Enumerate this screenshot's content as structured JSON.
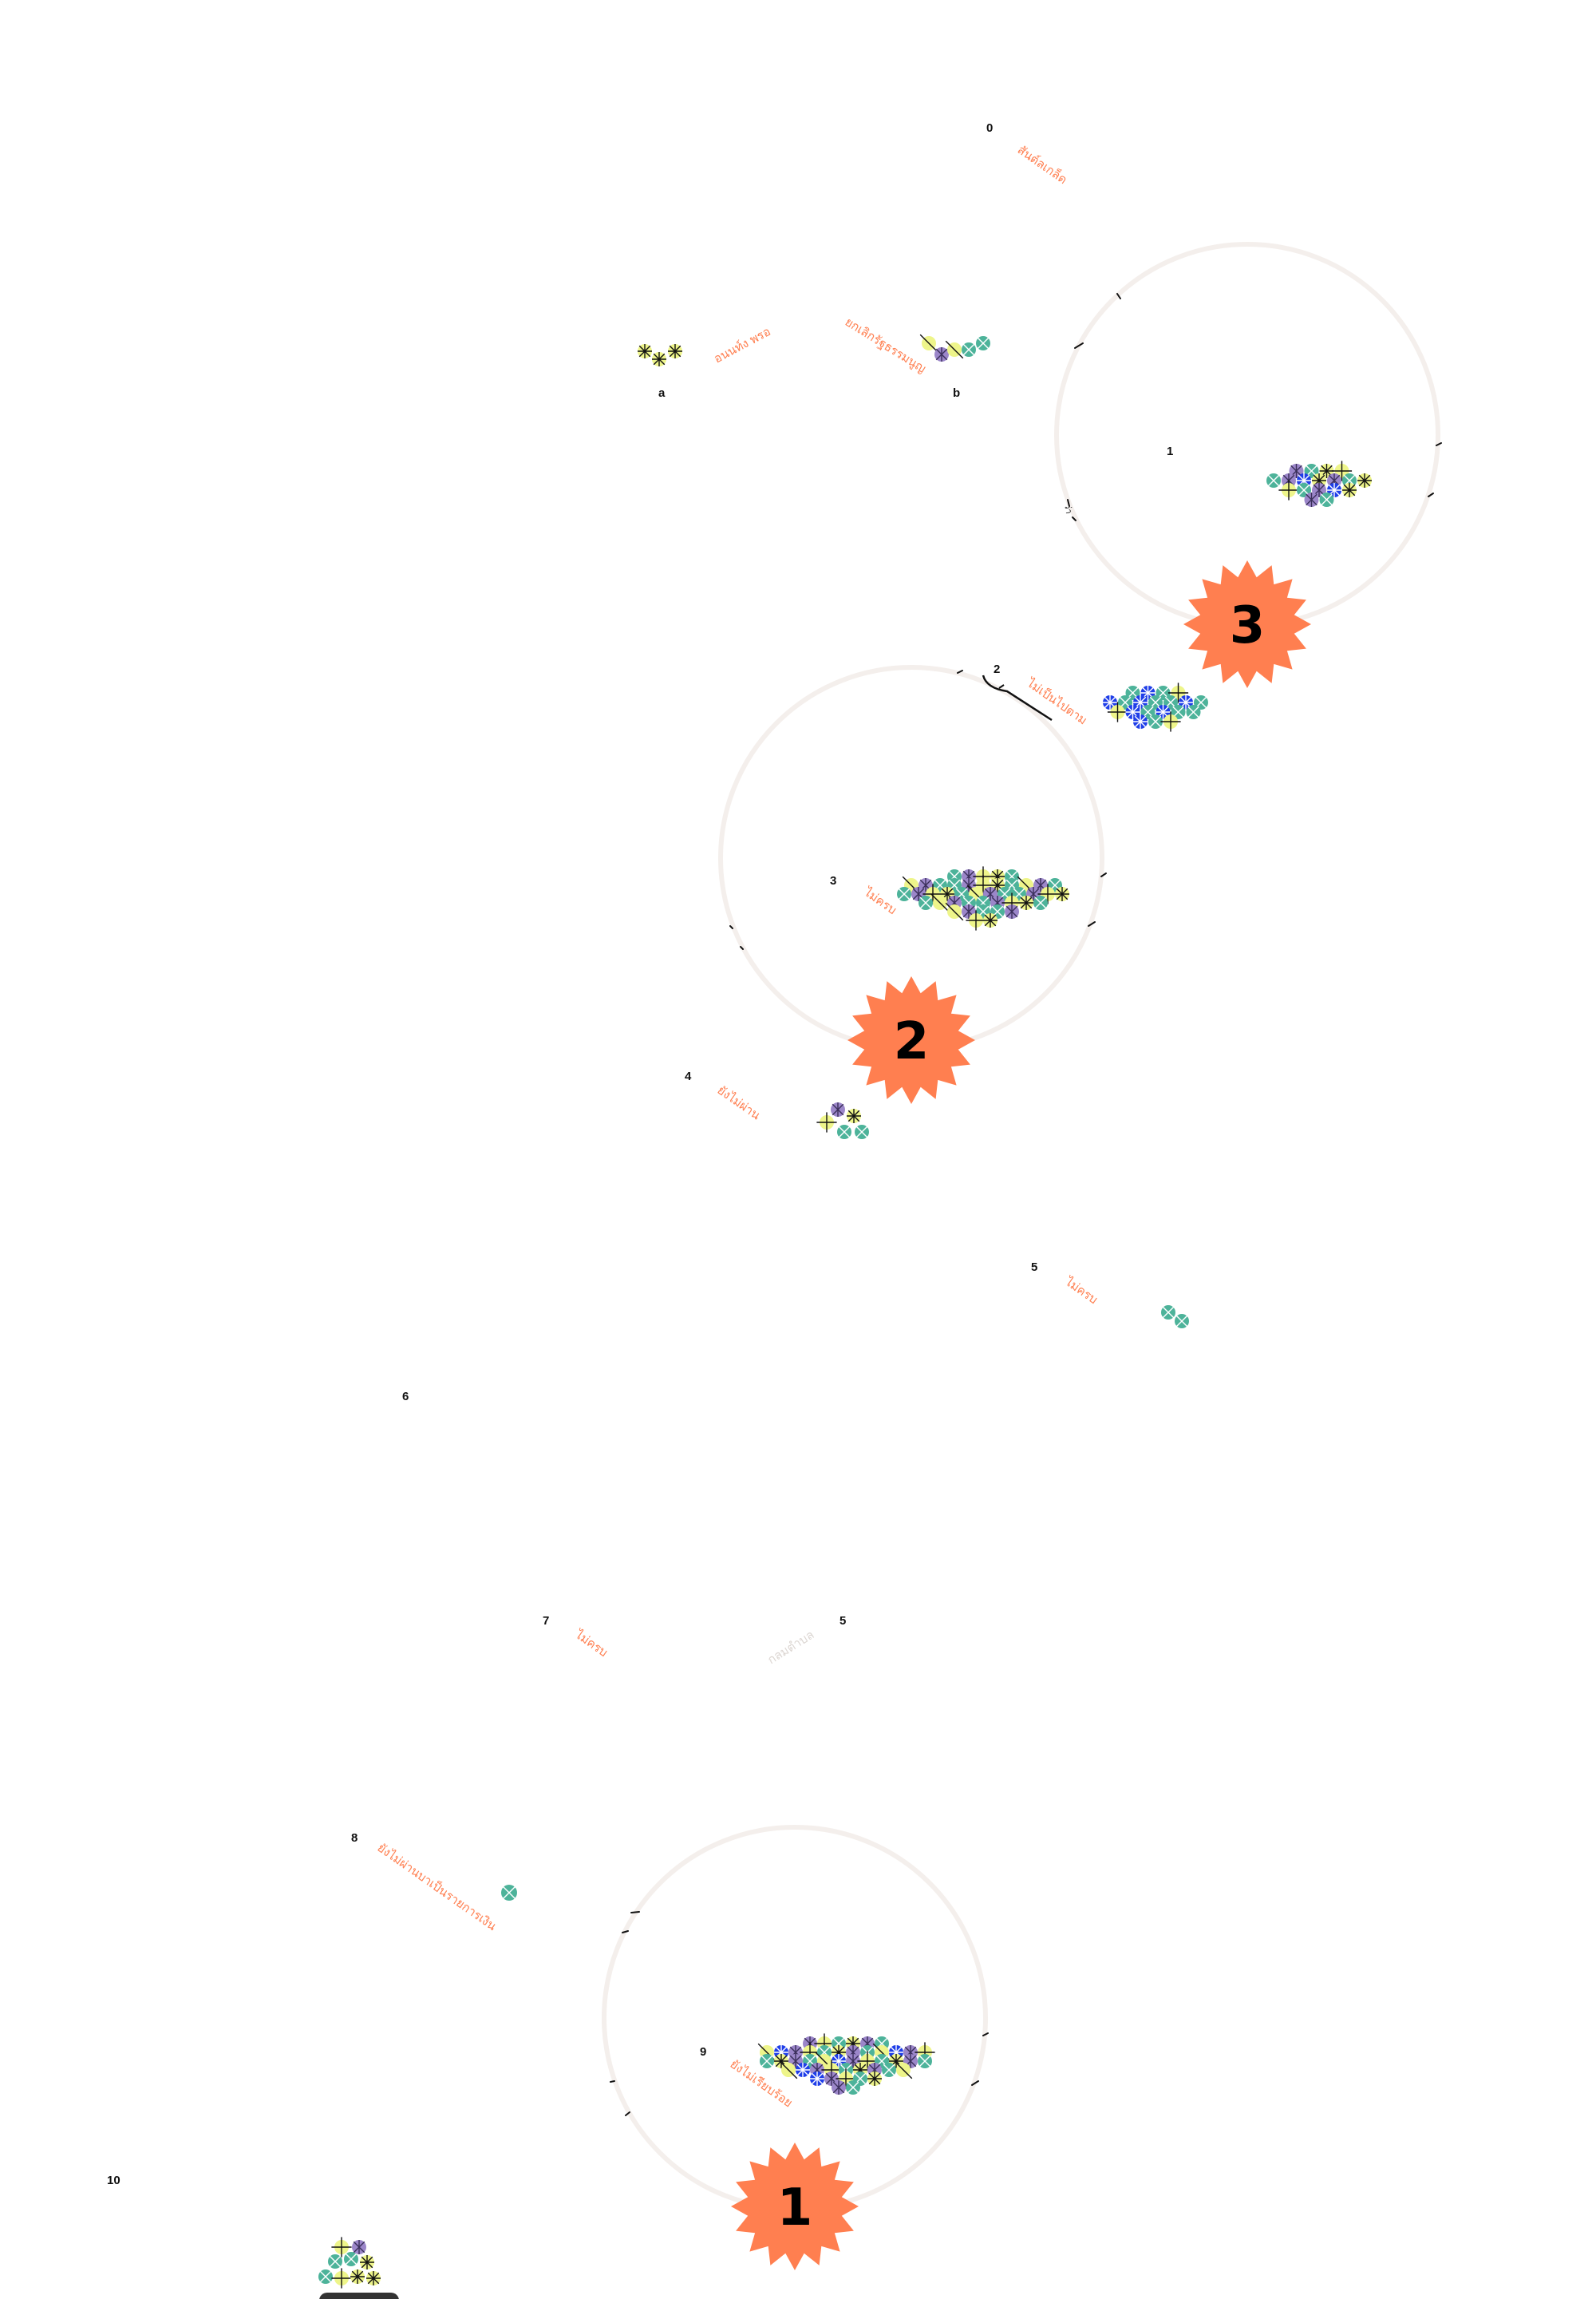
{
  "colors": {
    "ring": "#f4efec",
    "badge": "#ff7f50",
    "label": "#ff7f50",
    "faint_label": "#dcd6d2",
    "teal": "#4db39a",
    "purple": "#9b86c9",
    "lime": "#eef58a",
    "blue": "#1f3ee8",
    "ink": "#111111"
  },
  "top": {
    "num": "0",
    "label": "สันต์ลเกล็ด"
  },
  "groups": {
    "a": {
      "letter": "a",
      "label": "อนนท์ง พรอ"
    },
    "b": {
      "letter": "b",
      "label": "ยกเลิกรัฐธรรมนูญ"
    }
  },
  "steps": [
    {
      "num": "1",
      "label": "ว่า",
      "badge": "3"
    },
    {
      "num": "2",
      "label": "ไม่เป็นไปตาม"
    },
    {
      "num": "3",
      "label": "ไม่ครบ",
      "badge": "2"
    },
    {
      "num": "4",
      "label": "ยังไม่ผ่าน"
    },
    {
      "num": "5",
      "label": "ไม่ครบ"
    },
    {
      "num": "6",
      "label": ""
    },
    {
      "num": "7",
      "label": "ไม่ครบ"
    },
    {
      "num": "5",
      "label": "กลมตำบล"
    },
    {
      "num": "8",
      "label": "ยังไม่ผ่านบาเป็นรายการเงิน"
    },
    {
      "num": "9",
      "label": "ยังไม่เรียบร้อย",
      "badge": "1"
    },
    {
      "num": "10",
      "label": ""
    }
  ],
  "icon_legend": [
    "teal-cross-circle",
    "purple-asterisk-circle",
    "lime-star-circle",
    "blue-asterisk-circle",
    "lime-slash-circle"
  ]
}
